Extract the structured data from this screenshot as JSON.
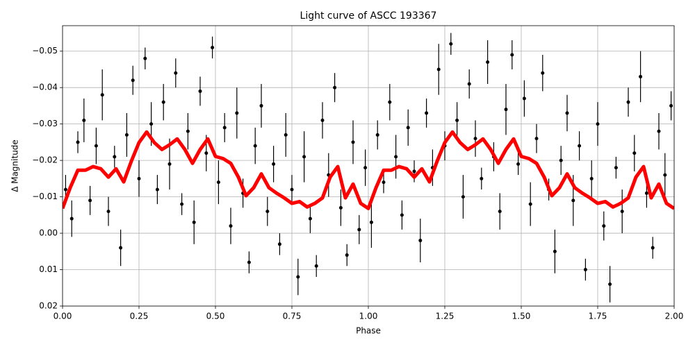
{
  "chart_data": {
    "type": "errorbar_scatter",
    "title": "Light curve of ASCC 193367",
    "xlabel": "Phase",
    "ylabel": "Δ Magnitude",
    "xlim": [
      0,
      2
    ],
    "ylim": [
      -0.057,
      0.02
    ],
    "invert_y": true,
    "grid": true,
    "xticks": [
      {
        "value": 0,
        "label": "0.00"
      },
      {
        "value": 0.25,
        "label": "0.25"
      },
      {
        "value": 0.5,
        "label": "0.50"
      },
      {
        "value": 0.75,
        "label": "0.75"
      },
      {
        "value": 1,
        "label": "1.00"
      },
      {
        "value": 1.25,
        "label": "1.25"
      },
      {
        "value": 1.5,
        "label": "1.50"
      },
      {
        "value": 1.75,
        "label": "1.75"
      },
      {
        "value": 2,
        "label": "2.00"
      }
    ],
    "yticks": [
      {
        "value": -0.05,
        "label": "−0.05"
      },
      {
        "value": -0.04,
        "label": "−0.04"
      },
      {
        "value": -0.03,
        "label": "−0.03"
      },
      {
        "value": -0.02,
        "label": "−0.02"
      },
      {
        "value": -0.01,
        "label": "−0.01"
      },
      {
        "value": 0,
        "label": "0.00"
      },
      0.01,
      0.02
    ],
    "points": {
      "color": "#000000",
      "x": [
        0.01,
        0.03,
        0.05,
        0.07,
        0.09,
        0.11,
        0.13,
        0.15,
        0.17,
        0.19,
        0.21,
        0.23,
        0.25,
        0.27,
        0.29,
        0.31,
        0.33,
        0.35,
        0.37,
        0.39,
        0.41,
        0.43,
        0.45,
        0.47,
        0.49,
        0.51,
        0.53,
        0.55,
        0.57,
        0.59,
        0.61,
        0.63,
        0.65,
        0.67,
        0.69,
        0.71,
        0.73,
        0.75,
        0.77,
        0.79,
        0.81,
        0.83,
        0.85,
        0.87,
        0.89,
        0.91,
        0.93,
        0.95,
        0.97,
        0.99,
        1.01,
        1.03,
        1.05,
        1.07,
        1.09,
        1.11,
        1.13,
        1.15,
        1.17,
        1.19,
        1.21,
        1.23,
        1.25,
        1.27,
        1.29,
        1.31,
        1.33,
        1.35,
        1.37,
        1.39,
        1.41,
        1.43,
        1.45,
        1.47,
        1.49,
        1.51,
        1.53,
        1.55,
        1.57,
        1.59,
        1.61,
        1.63,
        1.65,
        1.67,
        1.69,
        1.71,
        1.73,
        1.75,
        1.77,
        1.79,
        1.81,
        1.83,
        1.85,
        1.87,
        1.89,
        1.91,
        1.93,
        1.95,
        1.97,
        1.99
      ],
      "y": [
        -0.012,
        -0.004,
        -0.025,
        -0.031,
        -0.009,
        -0.024,
        -0.038,
        -0.006,
        -0.021,
        0.004,
        -0.027,
        -0.042,
        -0.015,
        -0.048,
        -0.03,
        -0.012,
        -0.036,
        -0.019,
        -0.044,
        -0.008,
        -0.028,
        -0.003,
        -0.039,
        -0.022,
        -0.051,
        -0.014,
        -0.029,
        -0.002,
        -0.033,
        -0.011,
        0.008,
        -0.024,
        -0.035,
        -0.006,
        -0.019,
        0.003,
        -0.027,
        -0.012,
        0.012,
        -0.021,
        -0.004,
        0.009,
        -0.031,
        -0.016,
        -0.04,
        -0.007,
        0.006,
        -0.025,
        -0.001,
        -0.018,
        -0.003,
        -0.027,
        -0.014,
        -0.036,
        -0.021,
        -0.005,
        -0.029,
        -0.017,
        0.002,
        -0.033,
        -0.018,
        -0.045,
        -0.024,
        -0.052,
        -0.031,
        -0.01,
        -0.041,
        -0.026,
        -0.015,
        -0.047,
        -0.021,
        -0.006,
        -0.034,
        -0.049,
        -0.019,
        -0.037,
        -0.008,
        -0.026,
        -0.044,
        -0.012,
        0.005,
        -0.02,
        -0.033,
        -0.009,
        -0.024,
        0.01,
        -0.015,
        -0.03,
        -0.002,
        0.014,
        -0.018,
        -0.006,
        -0.036,
        -0.022,
        -0.043,
        -0.011,
        0.004,
        -0.028,
        -0.016,
        -0.035
      ],
      "yerr": [
        0.004,
        0.005,
        0.003,
        0.006,
        0.004,
        0.005,
        0.007,
        0.004,
        0.003,
        0.005,
        0.006,
        0.004,
        0.005,
        0.003,
        0.006,
        0.004,
        0.005,
        0.007,
        0.004,
        0.003,
        0.005,
        0.006,
        0.004,
        0.005,
        0.003,
        0.006,
        0.004,
        0.005,
        0.007,
        0.004,
        0.003,
        0.005,
        0.006,
        0.004,
        0.005,
        0.003,
        0.006,
        0.004,
        0.005,
        0.007,
        0.004,
        0.003,
        0.005,
        0.006,
        0.004,
        0.005,
        0.003,
        0.006,
        0.004,
        0.005,
        0.007,
        0.004,
        0.003,
        0.005,
        0.006,
        0.004,
        0.005,
        0.003,
        0.006,
        0.004,
        0.005,
        0.007,
        0.004,
        0.003,
        0.005,
        0.006,
        0.004,
        0.005,
        0.003,
        0.006,
        0.004,
        0.005,
        0.007,
        0.004,
        0.003,
        0.005,
        0.006,
        0.004,
        0.005,
        0.003,
        0.006,
        0.004,
        0.005,
        0.007,
        0.004,
        0.003,
        0.005,
        0.006,
        0.004,
        0.005,
        0.003,
        0.006,
        0.004,
        0.005,
        0.007,
        0.004,
        0.003,
        0.005,
        0.006,
        0.004
      ]
    },
    "fit": {
      "color": "#ff0000",
      "x": [
        0,
        0.025,
        0.05,
        0.075,
        0.1,
        0.125,
        0.15,
        0.175,
        0.2,
        0.225,
        0.25,
        0.275,
        0.3,
        0.325,
        0.35,
        0.375,
        0.4,
        0.425,
        0.45,
        0.475,
        0.5,
        0.525,
        0.55,
        0.575,
        0.6,
        0.625,
        0.65,
        0.675,
        0.7,
        0.725,
        0.75,
        0.775,
        0.8,
        0.825,
        0.85,
        0.875,
        0.9,
        0.925,
        0.95,
        0.975,
        1,
        1.025,
        1.05,
        1.075,
        1.1,
        1.125,
        1.15,
        1.175,
        1.2,
        1.225,
        1.25,
        1.275,
        1.3,
        1.325,
        1.35,
        1.375,
        1.4,
        1.425,
        1.45,
        1.475,
        1.5,
        1.525,
        1.55,
        1.575,
        1.6,
        1.625,
        1.65,
        1.675,
        1.7,
        1.725,
        1.75,
        1.775,
        1.8,
        1.825,
        1.85,
        1.875,
        1.9,
        1.925,
        1.95,
        1.975,
        2
      ],
      "y": [
        -0.0068,
        -0.0125,
        -0.0173,
        -0.0173,
        -0.0183,
        -0.0177,
        -0.0154,
        -0.0177,
        -0.0141,
        -0.0198,
        -0.0249,
        -0.0278,
        -0.0249,
        -0.023,
        -0.0243,
        -0.0259,
        -0.023,
        -0.0192,
        -0.023,
        -0.0259,
        -0.0211,
        -0.0205,
        -0.0192,
        -0.0154,
        -0.0103,
        -0.0125,
        -0.0163,
        -0.0125,
        -0.011,
        -0.0097,
        -0.0082,
        -0.0087,
        -0.0072,
        -0.0082,
        -0.0097,
        -0.0154,
        -0.0183,
        -0.0097,
        -0.0135,
        -0.0082,
        -0.0068,
        -0.0125,
        -0.0173,
        -0.0173,
        -0.0183,
        -0.0177,
        -0.0154,
        -0.0177,
        -0.0141,
        -0.0198,
        -0.0249,
        -0.0278,
        -0.0249,
        -0.023,
        -0.0243,
        -0.0259,
        -0.023,
        -0.0192,
        -0.023,
        -0.0259,
        -0.0211,
        -0.0205,
        -0.0192,
        -0.0154,
        -0.0103,
        -0.0125,
        -0.0163,
        -0.0125,
        -0.011,
        -0.0097,
        -0.0082,
        -0.0087,
        -0.0072,
        -0.0082,
        -0.0097,
        -0.0154,
        -0.0183,
        -0.0097,
        -0.0135,
        -0.0082,
        -0.0068
      ]
    }
  }
}
